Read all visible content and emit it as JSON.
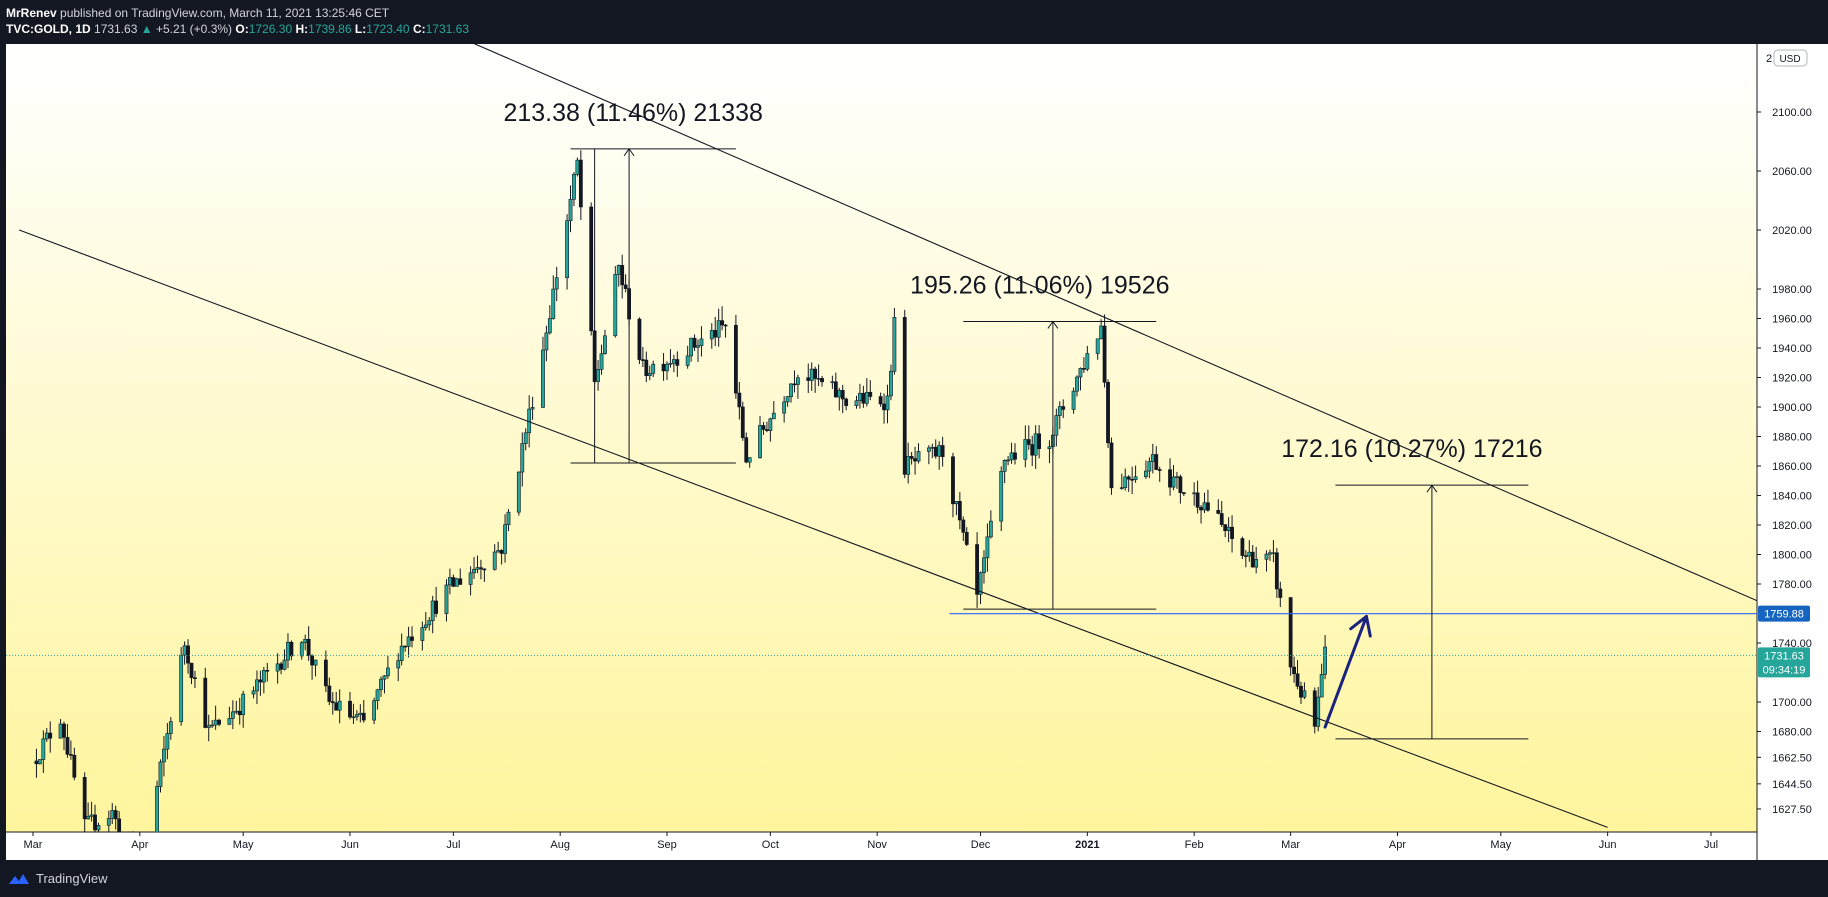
{
  "header": {
    "author": "MrRenev",
    "published_text": "published on TradingView.com, March 11, 2021 13:25:46 CET",
    "symbol": "TVC:GOLD, 1D",
    "last": "1731.63",
    "change": "+5.21 (+0.3%)",
    "o_label": "O:",
    "o_value": "1726.30",
    "h_label": "H:",
    "h_value": "1739.86",
    "l_label": "L:",
    "l_value": "1723.40",
    "c_label": "C:",
    "c_value": "1731.63"
  },
  "footer": {
    "brand": "TradingView"
  },
  "colors": {
    "bull": "#26a69a",
    "bear": "#ef5350",
    "candle_dark": "#131722",
    "hline": "#2962ff",
    "price_tag": "#1565c0",
    "arrow": "#1a237e",
    "bg_top": "#ffffff",
    "bg_bottom": "#fff59d"
  },
  "chart_data": {
    "type": "candlestick",
    "currency": "USD",
    "ylim": [
      1620,
      2165
    ],
    "price_ticks": [
      "2100.00",
      "2060.00",
      "2020.00",
      "1980.00",
      "1960.00",
      "1940.00",
      "1920.00",
      "1900.00",
      "1880.00",
      "1860.00",
      "1840.00",
      "1820.00",
      "1800.00",
      "1780.00",
      "1740.00",
      "1700.00",
      "1680.00",
      "1662.50",
      "1644.50",
      "1627.50"
    ],
    "top_tick_partial": "2",
    "months": [
      "Mar",
      "Apr",
      "May",
      "Jun",
      "Jul",
      "Aug",
      "Sep",
      "Oct",
      "Nov",
      "Dec",
      "2021",
      "Feb",
      "Mar",
      "Apr",
      "May",
      "Jun",
      "Jul"
    ],
    "month_dates": [
      "2020-03-01",
      "2020-04-01",
      "2020-05-01",
      "2020-06-01",
      "2020-07-01",
      "2020-08-01",
      "2020-09-01",
      "2020-10-01",
      "2020-11-01",
      "2020-12-01",
      "2021-01-01",
      "2021-02-01",
      "2021-03-01",
      "2021-04-01",
      "2021-05-01",
      "2021-06-01",
      "2021-07-01"
    ],
    "price_path": [
      [
        "2020-03-01",
        1660
      ],
      [
        "2020-03-09",
        1690
      ],
      [
        "2020-03-16",
        1615
      ],
      [
        "2020-03-24",
        1625
      ],
      [
        "2020-04-01",
        1580
      ],
      [
        "2020-04-14",
        1740
      ],
      [
        "2020-04-21",
        1680
      ],
      [
        "2020-05-01",
        1700
      ],
      [
        "2020-05-18",
        1745
      ],
      [
        "2020-05-26",
        1700
      ],
      [
        "2020-06-05",
        1685
      ],
      [
        "2020-06-15",
        1735
      ],
      [
        "2020-06-30",
        1778
      ],
      [
        "2020-07-15",
        1805
      ],
      [
        "2020-07-27",
        1940
      ],
      [
        "2020-08-06",
        2065
      ],
      [
        "2020-08-11",
        1915
      ],
      [
        "2020-08-18",
        1995
      ],
      [
        "2020-08-25",
        1925
      ],
      [
        "2020-09-04",
        1935
      ],
      [
        "2020-09-18",
        1955
      ],
      [
        "2020-09-24",
        1865
      ],
      [
        "2020-10-09",
        1925
      ],
      [
        "2020-10-23",
        1905
      ],
      [
        "2020-11-04",
        1905
      ],
      [
        "2020-11-06",
        1955
      ],
      [
        "2020-11-09",
        1860
      ],
      [
        "2020-11-20",
        1870
      ],
      [
        "2020-11-30",
        1770
      ],
      [
        "2020-12-08",
        1865
      ],
      [
        "2020-12-21",
        1880
      ],
      [
        "2021-01-05",
        1955
      ],
      [
        "2021-01-08",
        1845
      ],
      [
        "2021-01-20",
        1865
      ],
      [
        "2021-01-28",
        1845
      ],
      [
        "2021-02-04",
        1835
      ],
      [
        "2021-02-15",
        1800
      ],
      [
        "2021-02-24",
        1795
      ],
      [
        "2021-03-01",
        1725
      ],
      [
        "2021-03-08",
        1683
      ],
      [
        "2021-03-11",
        1731.63
      ]
    ],
    "channel_lines": [
      {
        "from": [
          "2020-05-25",
          2190
        ],
        "to": [
          "2021-07-18",
          1765
        ]
      },
      {
        "from": [
          "2020-02-26",
          2020
        ],
        "to": [
          "2021-06-01",
          1615
        ]
      }
    ],
    "measurements": [
      {
        "label": "213.38 (11.46%) 21338",
        "from_date": "2020-08-04",
        "to_date": "2020-09-21",
        "low": 1862,
        "high": 2075,
        "arrow_date": "2020-08-21",
        "tick_date": "2020-08-11"
      },
      {
        "label": "195.26 (11.06%) 19526",
        "from_date": "2020-11-26",
        "to_date": "2021-01-21",
        "low": 1763,
        "high": 1958,
        "arrow_date": "2020-12-22",
        "tick_date": ""
      },
      {
        "label": "172.16 (10.27%) 17216",
        "from_date": "2021-03-14",
        "to_date": "2021-05-09",
        "low": 1675,
        "high": 1847,
        "arrow_date": "2021-04-11",
        "tick_date": ""
      }
    ],
    "horizontal_line": {
      "from_date": "2020-11-22",
      "price": 1759.88,
      "label": "1759.88"
    },
    "current_price": {
      "price": 1731.63,
      "label": "1731.63",
      "countdown": "09:34:19"
    },
    "projection_arrow": {
      "from": [
        "2021-03-11",
        1683
      ],
      "to": [
        "2021-03-23",
        1758
      ]
    },
    "grid": false,
    "legend": "none"
  }
}
